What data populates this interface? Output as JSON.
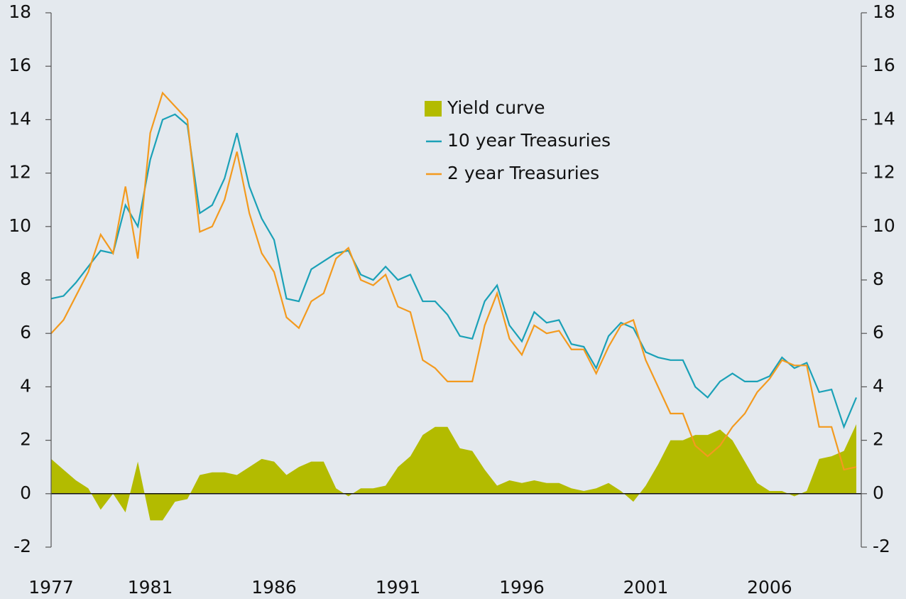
{
  "chart_data": {
    "type": "line",
    "x": [
      1977.0,
      1977.5,
      1978.0,
      1978.5,
      1979.0,
      1979.5,
      1980.0,
      1980.5,
      1981.0,
      1981.5,
      1982.0,
      1982.5,
      1983.0,
      1983.5,
      1984.0,
      1984.5,
      1985.0,
      1985.5,
      1986.0,
      1986.5,
      1987.0,
      1987.5,
      1988.0,
      1988.5,
      1989.0,
      1989.5,
      1990.0,
      1990.5,
      1991.0,
      1991.5,
      1992.0,
      1992.5,
      1993.0,
      1993.5,
      1994.0,
      1994.5,
      1995.0,
      1995.5,
      1996.0,
      1996.5,
      1997.0,
      1997.5,
      1998.0,
      1998.5,
      1999.0,
      1999.5,
      2000.0,
      2000.5,
      2001.0,
      2001.5,
      2002.0,
      2002.5,
      2003.0,
      2003.5,
      2004.0,
      2004.5,
      2005.0,
      2005.5,
      2006.0,
      2006.5,
      2007.0,
      2007.5,
      2008.0,
      2008.5,
      2009.0,
      2009.5
    ],
    "series": [
      {
        "name": "Yield curve",
        "color": "#b3bb00",
        "values": [
          1.3,
          0.9,
          0.5,
          0.2,
          -0.6,
          0,
          -0.7,
          1.2,
          -1.0,
          -1.0,
          -0.3,
          -0.2,
          0.7,
          0.8,
          0.8,
          0.7,
          1.0,
          1.3,
          1.2,
          0.7,
          1.0,
          1.2,
          1.2,
          0.2,
          -0.1,
          0.2,
          0.2,
          0.3,
          1.0,
          1.4,
          2.2,
          2.5,
          2.5,
          1.7,
          1.6,
          0.9,
          0.3,
          0.5,
          0.4,
          0.5,
          0.4,
          0.4,
          0.2,
          0.1,
          0.2,
          0.4,
          0.1,
          -0.3,
          0.3,
          1.1,
          2.0,
          2.0,
          2.2,
          2.2,
          2.4,
          2.0,
          1.2,
          0.4,
          0.1,
          0.1,
          -0.1,
          0.1,
          1.3,
          1.4,
          1.6,
          2.6
        ]
      },
      {
        "name": "10 year Treasuries",
        "color": "#1ba1b7",
        "values": [
          7.3,
          7.4,
          7.9,
          8.5,
          9.1,
          9.0,
          10.8,
          10.0,
          12.5,
          14.0,
          14.2,
          13.8,
          10.5,
          10.8,
          11.8,
          13.5,
          11.5,
          10.3,
          9.5,
          7.3,
          7.2,
          8.4,
          8.7,
          9.0,
          9.1,
          8.2,
          8.0,
          8.5,
          8.0,
          8.2,
          7.2,
          7.2,
          6.7,
          5.9,
          5.8,
          7.2,
          7.8,
          6.3,
          5.7,
          6.8,
          6.4,
          6.5,
          5.6,
          5.5,
          4.7,
          5.9,
          6.4,
          6.2,
          5.3,
          5.1,
          5.0,
          5.0,
          4.0,
          3.6,
          4.2,
          4.5,
          4.2,
          4.2,
          4.4,
          5.1,
          4.7,
          4.9,
          3.8,
          3.9,
          2.5,
          3.6
        ]
      },
      {
        "name": "2 year Treasuries",
        "color": "#f39a1e",
        "values": [
          6.0,
          6.5,
          7.4,
          8.3,
          9.7,
          9.0,
          11.5,
          8.8,
          13.5,
          15.0,
          14.5,
          14.0,
          9.8,
          10.0,
          11.0,
          12.8,
          10.5,
          9.0,
          8.3,
          6.6,
          6.2,
          7.2,
          7.5,
          8.8,
          9.2,
          8.0,
          7.8,
          8.2,
          7.0,
          6.8,
          5.0,
          4.7,
          4.2,
          4.2,
          4.2,
          6.3,
          7.5,
          5.8,
          5.2,
          6.3,
          6.0,
          6.1,
          5.4,
          5.4,
          4.5,
          5.5,
          6.3,
          6.5,
          5.0,
          4.0,
          3.0,
          3.0,
          1.8,
          1.4,
          1.8,
          2.5,
          3.0,
          3.8,
          4.3,
          5.0,
          4.8,
          4.8,
          2.5,
          2.5,
          0.9,
          1.0
        ]
      }
    ],
    "xlim": [
      1977,
      2009.7
    ],
    "xticks": [
      1977,
      1981,
      1986,
      1991,
      1996,
      2001,
      2006
    ],
    "ylim": [
      -2,
      18
    ],
    "yticks": [
      -2,
      0,
      2,
      4,
      6,
      8,
      10,
      12,
      14,
      16,
      18
    ],
    "grid": false
  }
}
